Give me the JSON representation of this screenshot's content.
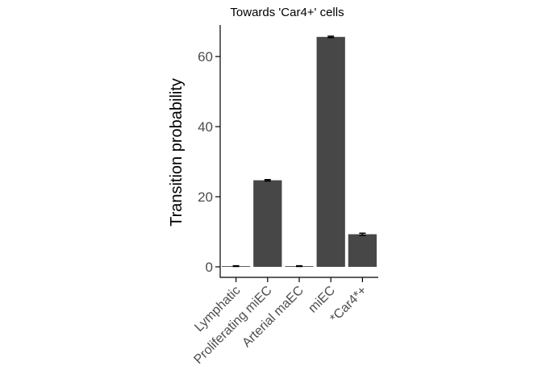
{
  "chart_data": {
    "type": "bar",
    "title": "Towards 'Car4+' cells",
    "xlabel": "",
    "ylabel": "Transition probability",
    "categories": [
      "Lymphatic",
      "Proliferating miEC",
      "Arterial maEC",
      "miEC",
      "*Car4*+"
    ],
    "values": [
      0.2,
      24.7,
      0.2,
      65.6,
      9.3
    ],
    "errors": [
      0.1,
      0.2,
      0.1,
      0.2,
      0.3
    ],
    "yticks": [
      0,
      20,
      40,
      60
    ],
    "ylim": [
      -3,
      69
    ],
    "grid": false,
    "legend": "none",
    "bar_color": "#474747"
  }
}
